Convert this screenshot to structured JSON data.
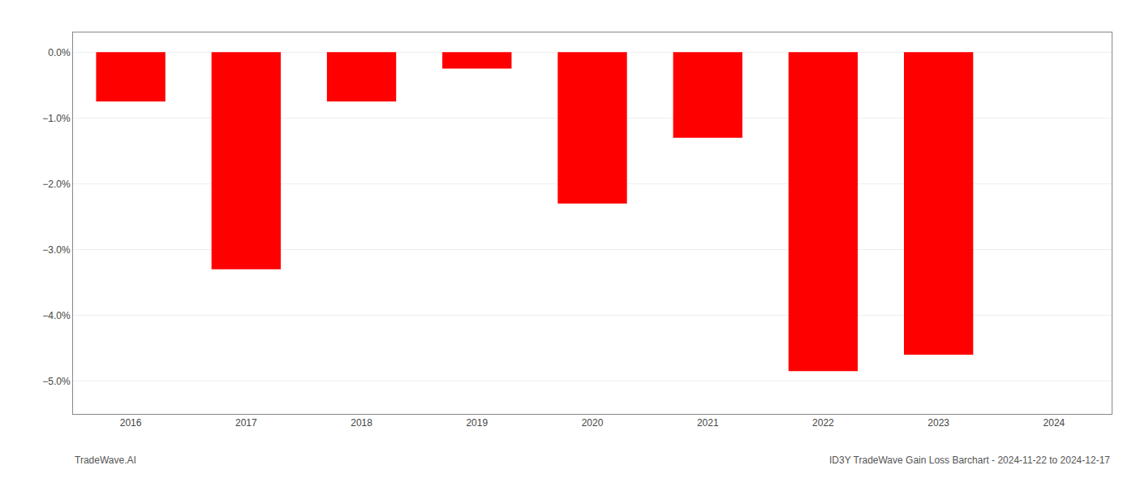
{
  "chart_data": {
    "type": "bar",
    "title": "ID3Y TradeWave Gain Loss Barchart - 2024-11-22 to 2024-12-17",
    "annotations": [
      "TradeWave.AI"
    ],
    "categories": [
      "2016",
      "2017",
      "2018",
      "2019",
      "2020",
      "2021",
      "2022",
      "2023",
      "2024"
    ],
    "values": [
      -0.0075,
      -0.033,
      -0.0075,
      -0.0025,
      -0.023,
      -0.013,
      -0.0485,
      -0.046,
      0.0
    ],
    "color": "#ff0000",
    "ylim": [
      -0.055,
      0.003
    ],
    "yticks": [
      {
        "value": 0.0,
        "label": "0.0%"
      },
      {
        "value": -0.01,
        "label": "−1.0%"
      },
      {
        "value": -0.02,
        "label": "−2.0%"
      },
      {
        "value": -0.03,
        "label": "−3.0%"
      },
      {
        "value": -0.04,
        "label": "−4.0%"
      },
      {
        "value": -0.05,
        "label": "−5.0%"
      }
    ],
    "grid": true
  }
}
